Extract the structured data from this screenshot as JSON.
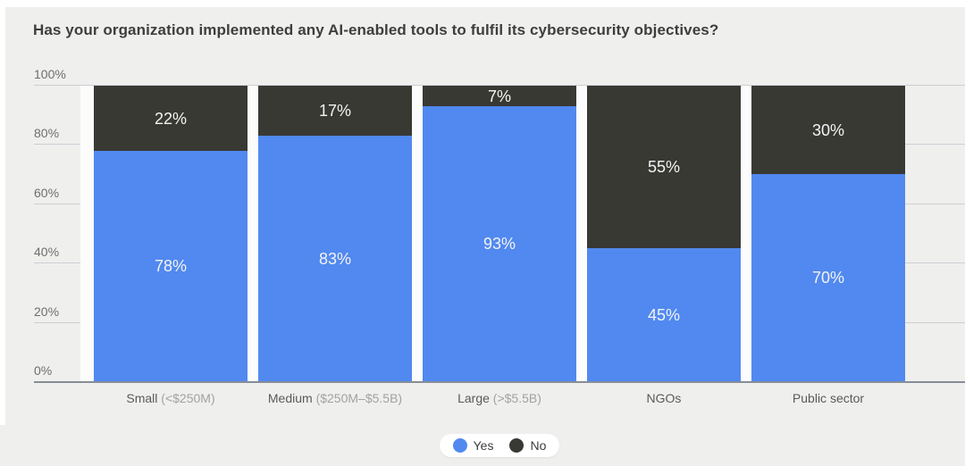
{
  "title": "Has your organization implemented any AI-enabled tools to fulfil its cybersecurity objectives?",
  "chart_data": {
    "type": "bar",
    "stacked": true,
    "percent": true,
    "title": "Has your organization implemented any AI-enabled tools to fulfil its cybersecurity objectives?",
    "categories": [
      {
        "label": "Small",
        "sub": "(<$250M)"
      },
      {
        "label": "Medium",
        "sub": "($250M–$5.5B)"
      },
      {
        "label": "Large",
        "sub": "(>$5.5B)"
      },
      {
        "label": "NGOs",
        "sub": ""
      },
      {
        "label": "Public sector",
        "sub": ""
      }
    ],
    "series": [
      {
        "name": "Yes",
        "color": "#5189f0",
        "values": [
          78,
          83,
          93,
          45,
          70
        ]
      },
      {
        "name": "No",
        "color": "#393934",
        "values": [
          22,
          17,
          7,
          55,
          30
        ]
      }
    ],
    "value_suffix": "%",
    "y_ticks": [
      "0%",
      "20%",
      "40%",
      "60%",
      "80%",
      "100%"
    ],
    "ylim": [
      0,
      100
    ],
    "grid": true,
    "legend_position": "bottom-center"
  },
  "legend": {
    "items": [
      {
        "label": "Yes",
        "color": "#5189f0"
      },
      {
        "label": "No",
        "color": "#393934"
      }
    ]
  },
  "colors": {
    "yes": "#5189f0",
    "no": "#393934",
    "page_bg": "#efefee",
    "plot_bg": "#fcfcfc",
    "gridline": "#ccced3",
    "axis_line": "#878d96"
  }
}
